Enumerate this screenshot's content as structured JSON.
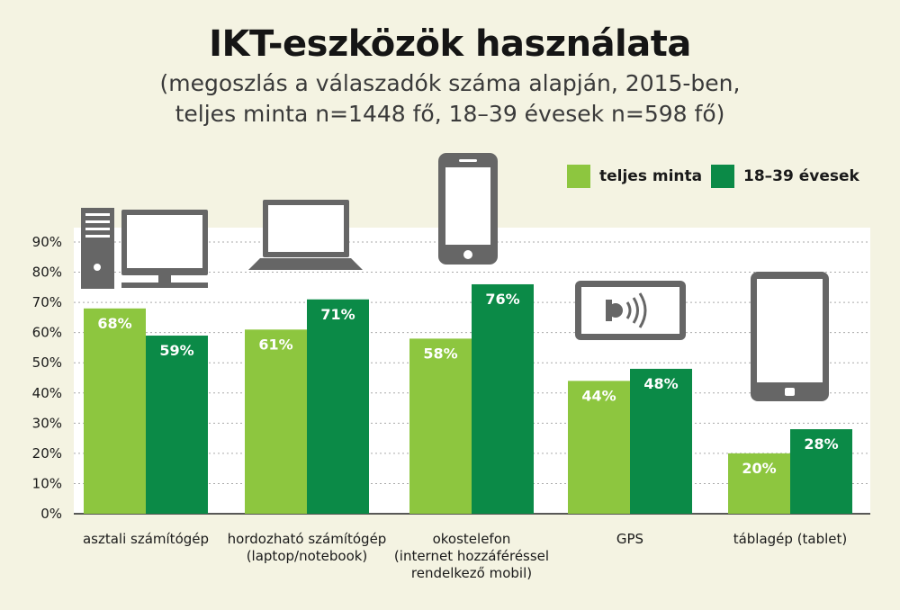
{
  "title": "IKT-eszközök használata",
  "subtitle_lines": [
    "(megoszlás a válaszadók száma alapján, 2015-ben,",
    "teljes minta n=1448 fő, 18–39 évesek n=598 fő)"
  ],
  "colors": {
    "light_green": "#8dc63f",
    "dark_green": "#0b8a47",
    "icon": "#666666",
    "grid": "#aaaaaa"
  },
  "chart_data": {
    "type": "bar",
    "categories": [
      "asztali számítógép",
      "hordozható számítógép (laptop/notebook)",
      "okostelefon (internet hozzáféréssel rendelkező mobil)",
      "GPS",
      "táblagép (tablet)"
    ],
    "category_label_lines": [
      [
        "asztali számítógép"
      ],
      [
        "hordozható számítógép",
        "(laptop/notebook)"
      ],
      [
        "okostelefon",
        "(internet hozzáféréssel",
        "rendelkező mobil)"
      ],
      [
        "GPS"
      ],
      [
        "táblagép (tablet)"
      ]
    ],
    "series": [
      {
        "name": "teljes minta",
        "values": [
          68,
          61,
          58,
          44,
          20
        ],
        "color": "#8dc63f"
      },
      {
        "name": "18–39 évesek",
        "values": [
          59,
          71,
          76,
          48,
          28
        ],
        "color": "#0b8a47"
      }
    ],
    "y_ticks": [
      "0%",
      "10%",
      "20%",
      "30%",
      "40%",
      "50%",
      "60%",
      "70%",
      "80%",
      "90%"
    ],
    "ylim": [
      0,
      90
    ],
    "unit": "%",
    "grid": true,
    "legend_position": "top-right",
    "category_icons": [
      "desktop-computer-icon",
      "laptop-icon",
      "smartphone-icon",
      "gps-icon",
      "tablet-icon"
    ]
  }
}
